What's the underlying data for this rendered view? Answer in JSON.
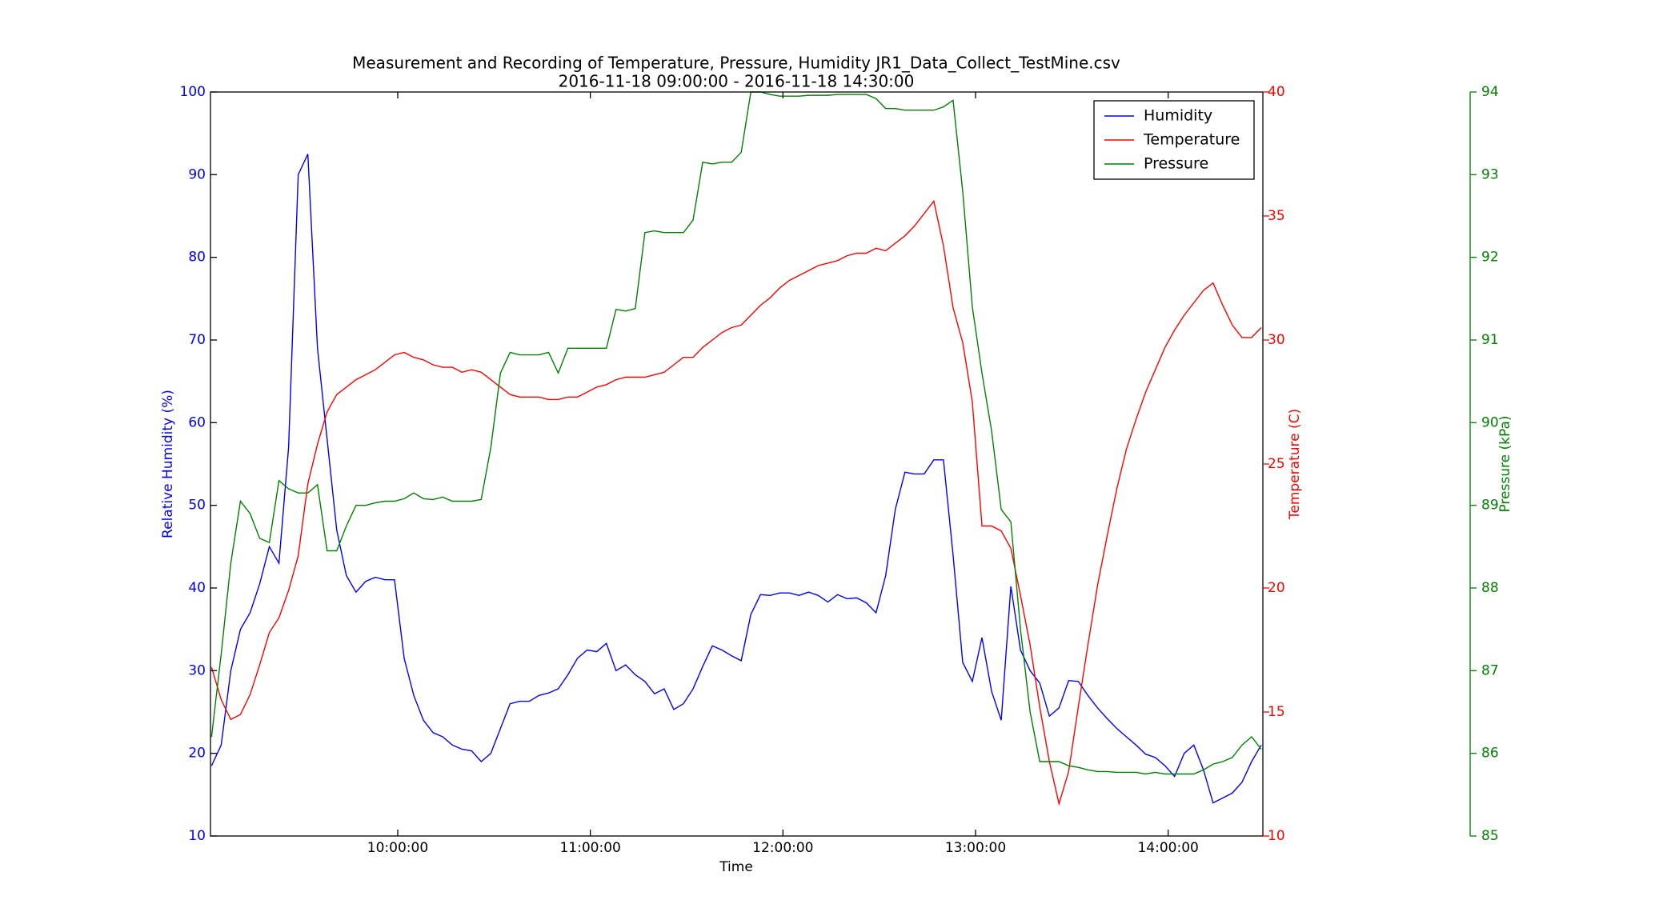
{
  "chart_data": {
    "type": "line",
    "title": "Measurement and Recording of Temperature, Pressure, Humidity JR1_Data_Collect_TestMine.csv",
    "subtitle": "2016-11-18 09:00:00 - 2016-11-18 14:30:00",
    "x_label": "Time",
    "y_label": "Relative Humidity (%)",
    "y2_label": "Temperature (C)",
    "y3_label": "Pressure (kPa)",
    "legend": "upper right",
    "xlim": [
      "09:01:40",
      "14:29:30"
    ],
    "xticks": [
      "10:00:00",
      "11:00:00",
      "12:00:00",
      "13:00:00",
      "14:00:00"
    ],
    "ylim": [
      10,
      100
    ],
    "yticks": [
      10,
      20,
      30,
      40,
      50,
      60,
      70,
      80,
      90,
      100
    ],
    "y2lim": [
      10,
      40
    ],
    "y2ticks": [
      10,
      15,
      20,
      25,
      30,
      35,
      40
    ],
    "y3lim": [
      85,
      94
    ],
    "y3ticks": [
      85,
      86,
      87,
      88,
      89,
      90,
      91,
      92,
      93,
      94
    ],
    "x": [
      "09:02:00",
      "09:05:00",
      "09:08:00",
      "09:11:00",
      "09:14:00",
      "09:17:00",
      "09:20:00",
      "09:23:00",
      "09:26:00",
      "09:29:00",
      "09:32:00",
      "09:35:00",
      "09:38:00",
      "09:41:00",
      "09:44:00",
      "09:47:00",
      "09:50:00",
      "09:53:00",
      "09:56:00",
      "09:59:00",
      "10:02:00",
      "10:05:00",
      "10:08:00",
      "10:11:00",
      "10:14:00",
      "10:17:00",
      "10:20:00",
      "10:23:00",
      "10:26:00",
      "10:29:00",
      "10:32:00",
      "10:35:00",
      "10:38:00",
      "10:41:00",
      "10:44:00",
      "10:47:00",
      "10:50:00",
      "10:53:00",
      "10:56:00",
      "10:59:00",
      "11:02:00",
      "11:05:00",
      "11:08:00",
      "11:11:00",
      "11:14:00",
      "11:17:00",
      "11:20:00",
      "11:23:00",
      "11:26:00",
      "11:29:00",
      "11:32:00",
      "11:35:00",
      "11:38:00",
      "11:41:00",
      "11:44:00",
      "11:47:00",
      "11:50:00",
      "11:53:00",
      "11:56:00",
      "11:59:00",
      "12:02:00",
      "12:05:00",
      "12:08:00",
      "12:11:00",
      "12:14:00",
      "12:17:00",
      "12:20:00",
      "12:23:00",
      "12:26:00",
      "12:29:00",
      "12:32:00",
      "12:35:00",
      "12:38:00",
      "12:41:00",
      "12:44:00",
      "12:47:00",
      "12:50:00",
      "12:53:00",
      "12:56:00",
      "12:59:00",
      "13:02:00",
      "13:05:00",
      "13:08:00",
      "13:11:00",
      "13:14:00",
      "13:17:00",
      "13:20:00",
      "13:23:00",
      "13:26:00",
      "13:29:00",
      "13:32:00",
      "13:35:00",
      "13:38:00",
      "13:41:00",
      "13:44:00",
      "13:47:00",
      "13:50:00",
      "13:53:00",
      "13:56:00",
      "13:59:00",
      "14:02:00",
      "14:05:00",
      "14:08:00",
      "14:11:00",
      "14:14:00",
      "14:17:00",
      "14:20:00",
      "14:23:00",
      "14:26:00",
      "14:29:00"
    ],
    "series": [
      {
        "name": "Humidity",
        "color": "#0000ff",
        "axis": "y",
        "values": [
          18.5,
          21,
          30,
          35,
          37,
          40.5,
          45,
          43,
          57,
          90,
          92.5,
          69,
          58,
          47,
          41.5,
          39.5,
          40.8,
          41.3,
          41,
          41,
          31.5,
          27,
          24,
          22.5,
          22,
          21,
          20.5,
          20.3,
          19,
          20,
          23,
          26,
          26.3,
          26.3,
          27,
          27.3,
          27.8,
          29.5,
          31.5,
          32.5,
          32.3,
          33.3,
          30,
          30.7,
          29.5,
          28.7,
          27.2,
          27.8,
          25.3,
          26,
          27.8,
          30.5,
          33,
          32.5,
          31.8,
          31.2,
          36.8,
          39.2,
          39.1,
          39.4,
          39.4,
          39.1,
          39.5,
          39.1,
          38.3,
          39.2,
          38.7,
          38.8,
          38.2,
          37,
          41.5,
          49.5,
          54,
          53.8,
          53.8,
          55.5,
          55.5,
          44,
          31,
          28.7,
          34,
          27.5,
          24,
          40.2,
          32.5,
          30,
          28.5,
          24.5,
          25.5,
          28.8,
          28.7,
          27,
          25.5,
          24.2,
          23,
          22,
          21,
          19.9,
          19.5,
          18.5,
          17.2,
          20,
          21,
          18,
          14,
          14.6,
          15.2,
          16.5,
          19,
          21
        ]
      },
      {
        "name": "Temperature",
        "color": "#ff0000",
        "axis": "y2",
        "values": [
          16.8,
          15.5,
          14.7,
          14.9,
          15.7,
          16.9,
          18.2,
          18.8,
          19.9,
          21.3,
          24.2,
          25.8,
          27.1,
          27.8,
          28.1,
          28.4,
          28.6,
          28.8,
          29.1,
          29.4,
          29.5,
          29.3,
          29.2,
          29.0,
          28.9,
          28.9,
          28.7,
          28.8,
          28.7,
          28.4,
          28.1,
          27.8,
          27.7,
          27.7,
          27.7,
          27.6,
          27.6,
          27.7,
          27.7,
          27.9,
          28.1,
          28.2,
          28.4,
          28.5,
          28.5,
          28.5,
          28.6,
          28.7,
          29.0,
          29.3,
          29.3,
          29.7,
          30.0,
          30.3,
          30.5,
          30.6,
          31.0,
          31.4,
          31.7,
          32.1,
          32.4,
          32.6,
          32.8,
          33.0,
          33.1,
          33.2,
          33.4,
          33.5,
          33.5,
          33.7,
          33.6,
          33.9,
          34.2,
          34.6,
          35.1,
          35.6,
          33.8,
          31.3,
          29.9,
          27.5,
          22.5,
          22.5,
          22.3,
          21.6,
          19.7,
          17.7,
          15.2,
          13.0,
          11.3,
          12.6,
          15.2,
          17.7,
          20.1,
          22.1,
          24.0,
          25.6,
          26.8,
          27.9,
          28.8,
          29.7,
          30.4,
          31.0,
          31.5,
          32.0,
          32.3,
          31.4,
          30.6,
          30.1,
          30.1,
          30.5
        ]
      },
      {
        "name": "Pressure",
        "color": "#008000",
        "axis": "y3",
        "values": [
          86.2,
          87.2,
          88.3,
          89.05,
          88.9,
          88.6,
          88.55,
          89.3,
          89.2,
          89.15,
          89.15,
          89.25,
          88.45,
          88.45,
          88.75,
          89.0,
          89.0,
          89.03,
          89.05,
          89.05,
          89.08,
          89.15,
          89.08,
          89.07,
          89.1,
          89.05,
          89.05,
          89.05,
          89.07,
          89.7,
          90.6,
          90.85,
          90.82,
          90.82,
          90.82,
          90.85,
          90.6,
          90.9,
          90.9,
          90.9,
          90.9,
          90.9,
          91.37,
          91.35,
          91.38,
          92.3,
          92.32,
          92.3,
          92.3,
          92.3,
          92.45,
          93.15,
          93.13,
          93.15,
          93.15,
          93.27,
          94.0,
          94.0,
          93.97,
          93.95,
          93.95,
          93.95,
          93.96,
          93.96,
          93.96,
          93.97,
          93.97,
          93.97,
          93.97,
          93.92,
          93.8,
          93.8,
          93.78,
          93.78,
          93.78,
          93.78,
          93.82,
          93.9,
          92.8,
          91.4,
          90.6,
          89.9,
          88.95,
          88.8,
          87.5,
          86.5,
          85.9,
          85.9,
          85.9,
          85.85,
          85.83,
          85.8,
          85.78,
          85.78,
          85.77,
          85.77,
          85.77,
          85.75,
          85.77,
          85.75,
          85.75,
          85.75,
          85.75,
          85.8,
          85.87,
          85.9,
          85.95,
          86.1,
          86.2,
          86.05
        ]
      }
    ]
  }
}
